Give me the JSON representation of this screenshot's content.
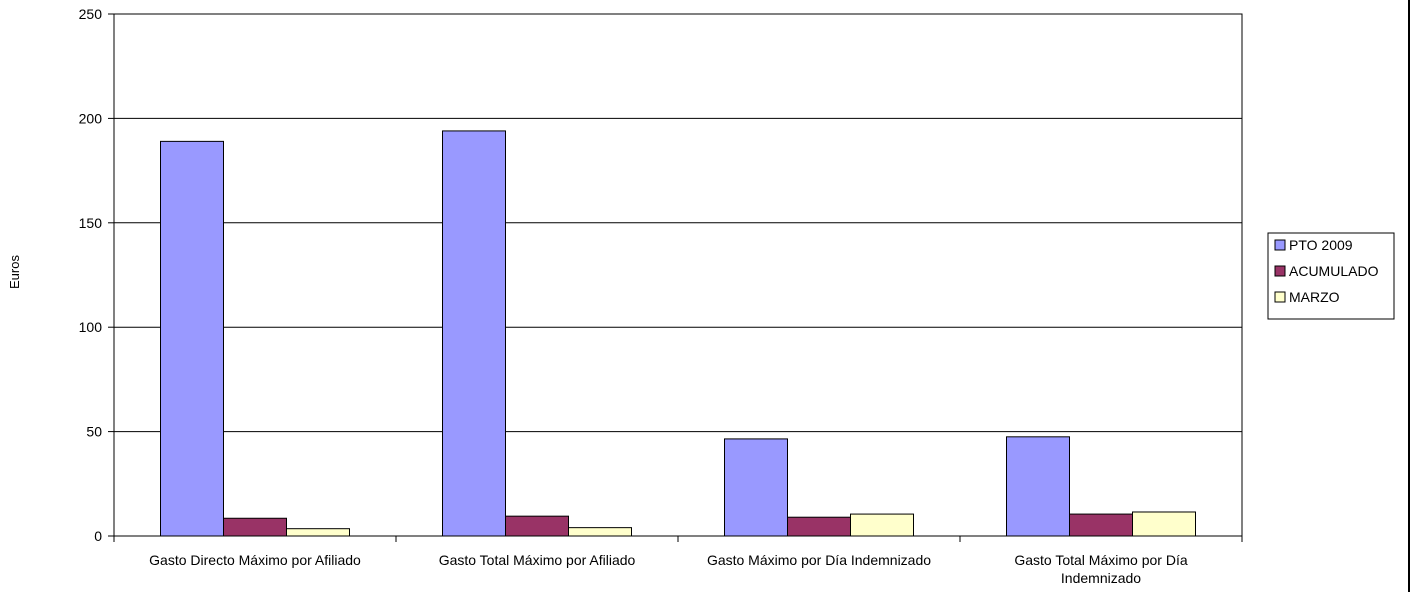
{
  "chart_data": {
    "type": "bar",
    "title": "",
    "xlabel": "",
    "ylabel": "Euros",
    "ylim": [
      0,
      250
    ],
    "yticks": [
      0,
      50,
      100,
      150,
      200,
      250
    ],
    "grid": true,
    "legend_position": "right",
    "categories": [
      "Gasto Directo Máximo por Afiliado",
      "Gasto Total Máximo por Afiliado",
      "Gasto Máximo por Día Indemnizado",
      "Gasto Total Máximo por Día Indemnizado"
    ],
    "category_lines": [
      [
        "Gasto Directo Máximo por Afiliado"
      ],
      [
        "Gasto Total Máximo por Afiliado"
      ],
      [
        "Gasto Máximo por Día Indemnizado"
      ],
      [
        "Gasto Total Máximo por Día",
        "Indemnizado"
      ]
    ],
    "series": [
      {
        "name": "PTO 2009",
        "color": "#9999ff",
        "values": [
          189,
          194,
          46.5,
          47.5
        ]
      },
      {
        "name": "ACUMULADO",
        "color": "#993366",
        "values": [
          8.5,
          9.5,
          9,
          10.5
        ]
      },
      {
        "name": "MARZO",
        "color": "#ffffcc",
        "values": [
          3.5,
          4,
          10.5,
          11.5
        ]
      }
    ]
  }
}
